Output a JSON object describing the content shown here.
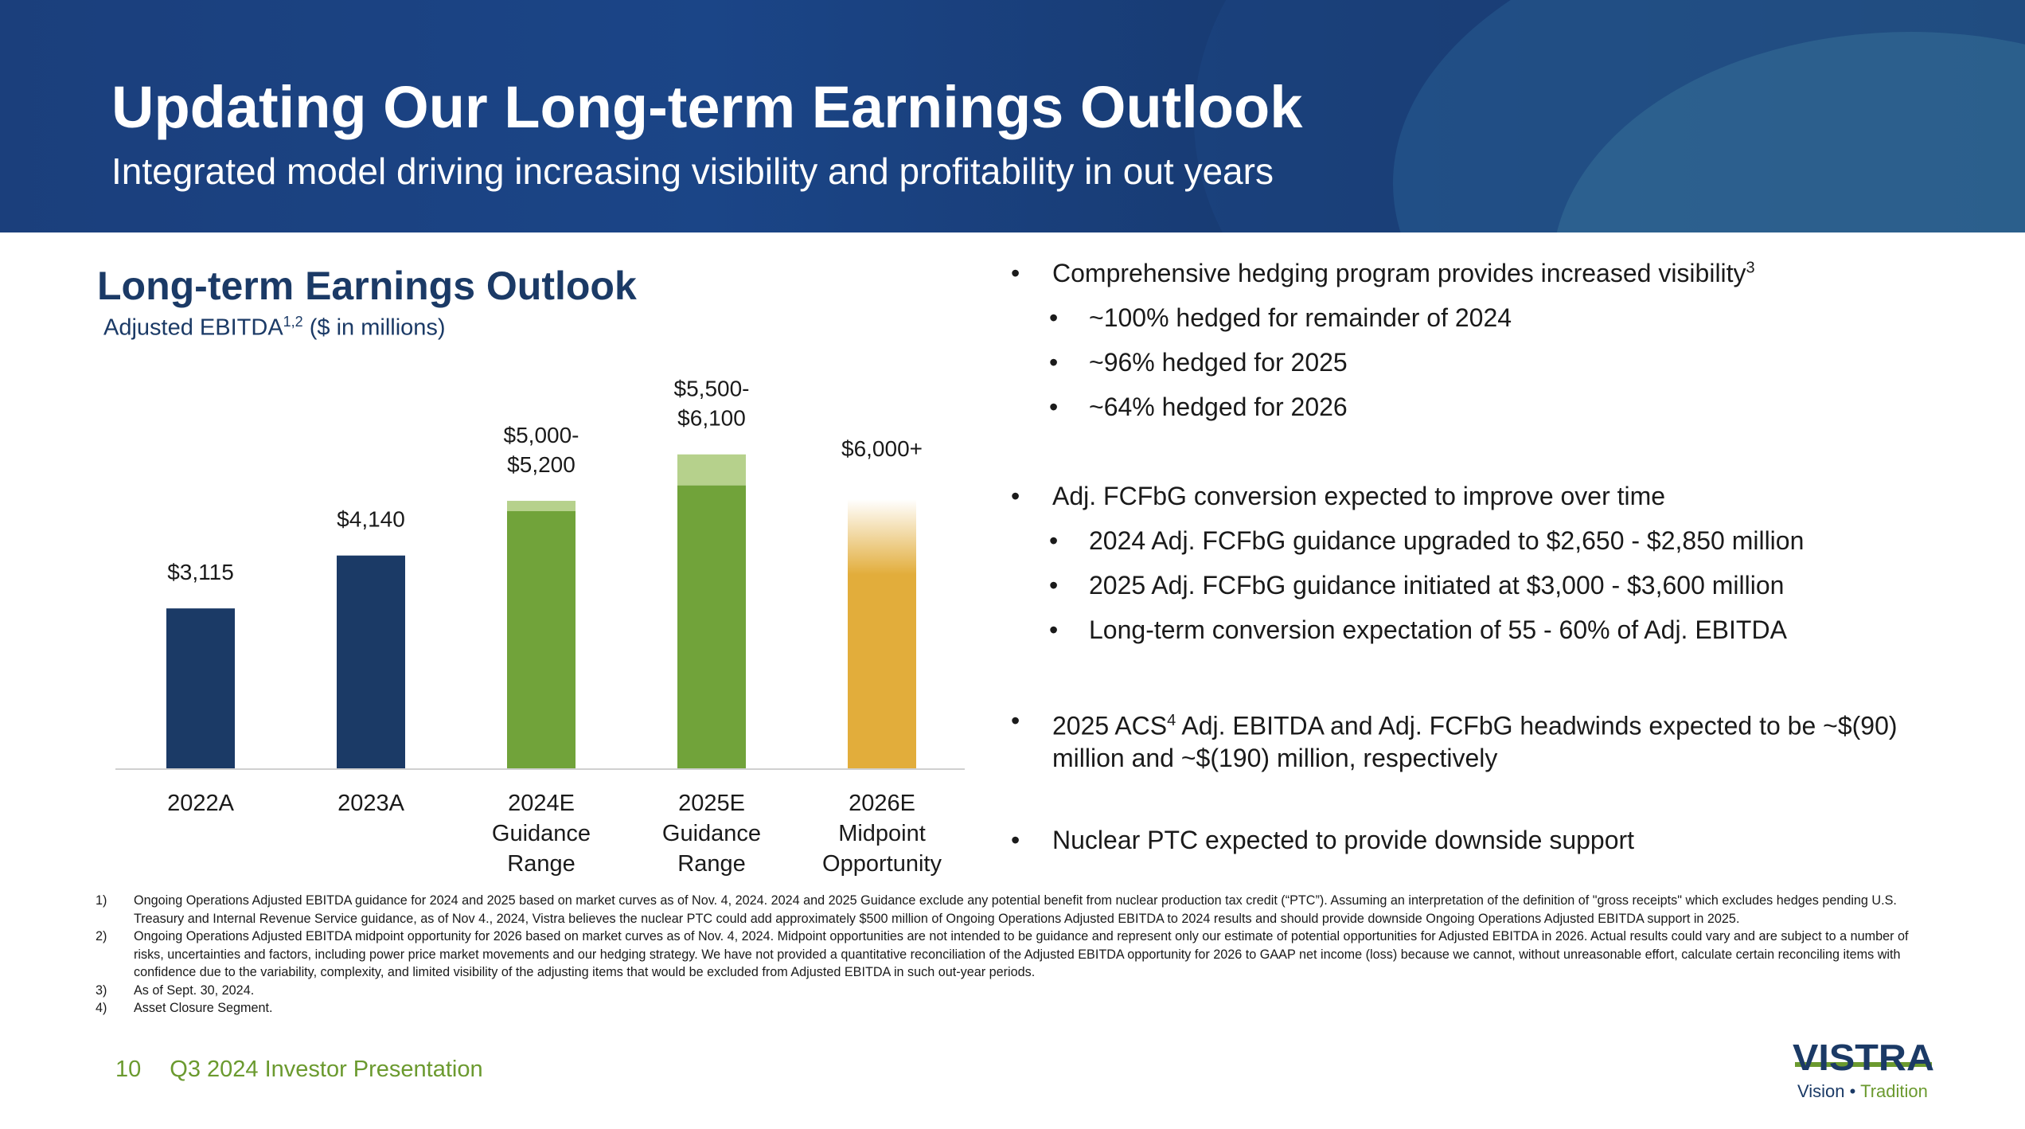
{
  "header": {
    "title": "Updating Our Long-term Earnings Outlook",
    "subtitle": "Integrated model driving increasing visibility and profitability in out years"
  },
  "chart_section": {
    "title": "Long-term Earnings Outlook",
    "subtitle_prefix": "Adjusted EBITDA",
    "subtitle_sup": "1,2",
    "subtitle_suffix": " ($ in millions)"
  },
  "chart_data": {
    "type": "bar",
    "title": "Long-term Earnings Outlook",
    "ylabel": "Adjusted EBITDA ($ in millions)",
    "categories": [
      "2022A",
      "2023A",
      "2024E Guidance Range",
      "2025E Guidance Range",
      "2026E Midpoint Opportunity"
    ],
    "category_lines": [
      [
        "2022A"
      ],
      [
        "2023A"
      ],
      [
        "2024E",
        "Guidance",
        "Range"
      ],
      [
        "2025E",
        "Guidance",
        "Range"
      ],
      [
        "2026E",
        "Midpoint",
        "Opportunity"
      ]
    ],
    "low": [
      3115,
      4140,
      5000,
      5500,
      6000
    ],
    "high": [
      3115,
      4140,
      5200,
      6100,
      6000
    ],
    "value_labels": [
      [
        "$3,115"
      ],
      [
        "$4,140"
      ],
      [
        "$5,000-",
        "$5,200"
      ],
      [
        "$5,500-",
        "$6,100"
      ],
      [
        "$6,000+"
      ]
    ],
    "open_ended": [
      false,
      false,
      false,
      false,
      true
    ],
    "colors": {
      "actual": "#1b3a66",
      "guidance_low": "#71a33a",
      "guidance_range": "#b6d18c",
      "opportunity": "#e2ad3b"
    },
    "ylim": [
      0,
      7000
    ],
    "grid": false,
    "legend": "none"
  },
  "bullets": [
    {
      "level": 1,
      "text": "Comprehensive hedging program provides increased visibility",
      "sup": "3"
    },
    {
      "level": 2,
      "text": "~100% hedged for remainder of 2024"
    },
    {
      "level": 2,
      "text": "~96% hedged for 2025"
    },
    {
      "level": 2,
      "text": "~64% hedged for 2026"
    },
    {
      "level": 1,
      "text": "Adj. FCFbG conversion expected to improve over time"
    },
    {
      "level": 2,
      "text": "2024 Adj. FCFbG guidance upgraded to $2,650 - $2,850 million"
    },
    {
      "level": 2,
      "text": "2025 Adj. FCFbG guidance initiated at $3,000 - $3,600 million"
    },
    {
      "level": 2,
      "text": "Long-term conversion expectation of 55 - 60% of Adj. EBITDA"
    },
    {
      "level": 1,
      "pre": "2025 ACS",
      "sup": "4",
      "text": " Adj. EBITDA and Adj. FCFbG headwinds expected to be ~$(90)",
      "text2": "million and ~$(190) million, respectively"
    },
    {
      "level": 1,
      "text": "Nuclear PTC expected to provide downside support"
    }
  ],
  "footnotes": [
    {
      "num": "1)",
      "text": "Ongoing Operations Adjusted EBITDA guidance for 2024 and 2025 based on market curves as of Nov. 4, 2024. 2024 and 2025 Guidance exclude any potential benefit from nuclear production tax credit (“PTC”). Assuming an interpretation of the definition of \"gross receipts\" which excludes hedges pending U.S. Treasury and Internal Revenue Service guidance, as of Nov 4., 2024, Vistra believes the nuclear PTC could add approximately $500 million of Ongoing Operations Adjusted EBITDA to 2024 results and should provide downside Ongoing Operations Adjusted EBITDA support in 2025."
    },
    {
      "num": "2)",
      "text": "Ongoing Operations Adjusted EBITDA midpoint opportunity for 2026 based on market curves as of Nov. 4, 2024. Midpoint opportunities are not intended to be guidance and represent only our estimate of potential opportunities for Adjusted EBITDA in 2026. Actual results could vary and are subject to a number of risks, uncertainties and factors, including power price market movements and our hedging strategy. We have not provided a quantitative reconciliation of the Adjusted EBITDA opportunity for 2026 to GAAP net income (loss) because we cannot, without unreasonable effort, calculate certain reconciling items with confidence due to the variability, complexity, and limited visibility of the adjusting items that would be excluded from Adjusted EBITDA in such out-year periods."
    },
    {
      "num": "3)",
      "text": "As of Sept. 30, 2024."
    },
    {
      "num": "4)",
      "text": "Asset Closure Segment."
    }
  ],
  "footer": {
    "page_number": "10",
    "presentation": "Q3 2024 Investor Presentation"
  },
  "logo": {
    "wordmark": "VISTRA",
    "tagline_vision": "Vision",
    "tagline_bullet": "•",
    "tagline_tradition": "Tradition"
  }
}
